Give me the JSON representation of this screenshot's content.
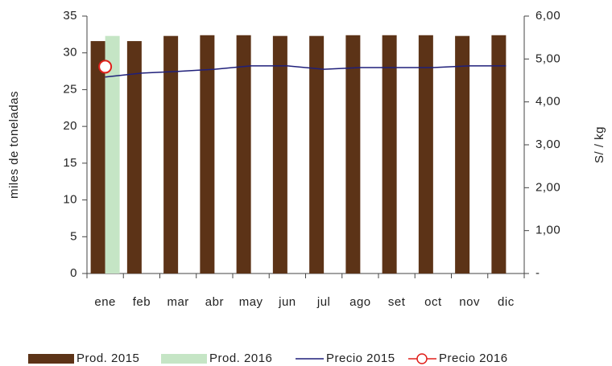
{
  "chart_data": {
    "type": "bar",
    "categories": [
      "ene",
      "feb",
      "mar",
      "abr",
      "may",
      "jun",
      "jul",
      "ago",
      "set",
      "oct",
      "nov",
      "dic"
    ],
    "y_label": "miles de toneladas",
    "y2_label": "S/ / kg",
    "ylim": [
      0,
      35
    ],
    "yticks": [
      0,
      5,
      10,
      15,
      20,
      25,
      30,
      35
    ],
    "y2lim": [
      0,
      6
    ],
    "y2ticks": [
      {
        "value": 0,
        "label": "-"
      },
      {
        "value": 1,
        "label": "1,00"
      },
      {
        "value": 2,
        "label": "2,00"
      },
      {
        "value": 3,
        "label": "3,00"
      },
      {
        "value": 4,
        "label": "4,00"
      },
      {
        "value": 5,
        "label": "5,00"
      },
      {
        "value": 6,
        "label": "6,00"
      }
    ],
    "legend": "bottom",
    "series": [
      {
        "name": "Prod. 2015",
        "type": "bar",
        "color": "#5c3317",
        "values": [
          31.6,
          31.6,
          32.3,
          32.4,
          32.4,
          32.3,
          32.3,
          32.4,
          32.4,
          32.4,
          32.3,
          32.4
        ]
      },
      {
        "name": "Prod. 2016",
        "type": "bar",
        "color": "#c5e5c5",
        "values": [
          32.3,
          null,
          null,
          null,
          null,
          null,
          null,
          null,
          null,
          null,
          null,
          null
        ]
      },
      {
        "name": "Precio 2015",
        "type": "line",
        "axis": "y2",
        "color": "#1f1f7a",
        "values": [
          4.58,
          4.67,
          4.71,
          4.76,
          4.84,
          4.84,
          4.76,
          4.8,
          4.8,
          4.8,
          4.84,
          4.84
        ]
      },
      {
        "name": "Precio 2016",
        "type": "line",
        "axis": "y2",
        "marker": "circle",
        "color": "#e0201b",
        "values": [
          4.82,
          null,
          null,
          null,
          null,
          null,
          null,
          null,
          null,
          null,
          null,
          null
        ]
      }
    ]
  }
}
